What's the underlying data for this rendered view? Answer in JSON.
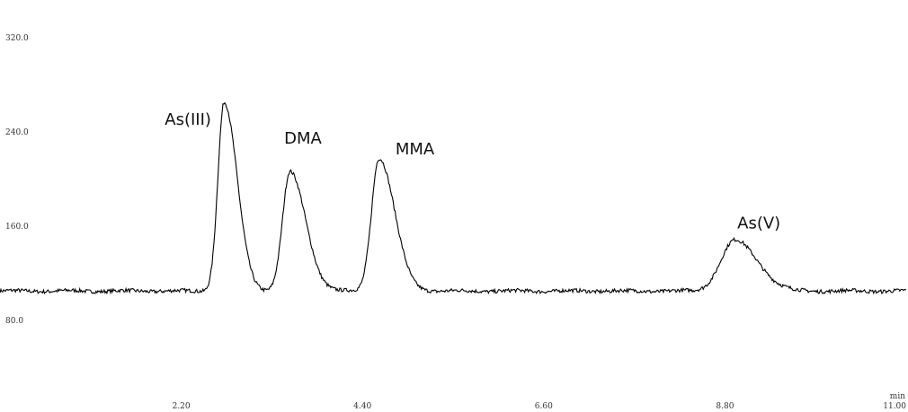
{
  "chart_data": {
    "type": "line",
    "title": "",
    "xlabel": "",
    "ylabel": "",
    "x_unit": "min",
    "xlim": [
      0.0,
      11.0
    ],
    "ylim": [
      50.0,
      330.0
    ],
    "xticks": [
      {
        "value": 2.2,
        "label": "2.20"
      },
      {
        "value": 4.4,
        "label": "4.40"
      },
      {
        "value": 6.6,
        "label": "6.60"
      },
      {
        "value": 8.8,
        "label": "8.80"
      },
      {
        "value": 11.0,
        "label": "11.00"
      }
    ],
    "yticks": [
      {
        "value": 80,
        "label": "80.0"
      },
      {
        "value": 160,
        "label": "160.0"
      },
      {
        "value": 240,
        "label": "240.0"
      },
      {
        "value": 320,
        "label": "320.0"
      }
    ],
    "grid": false,
    "color": "#000000",
    "baseline": 105,
    "peaks": [
      {
        "label": "As(III)",
        "retention_time": 2.72,
        "height": 265,
        "label_x": 2.0,
        "label_y": 246
      },
      {
        "label": "DMA",
        "retention_time": 3.52,
        "height": 206,
        "label_x": 3.45,
        "label_y": 230
      },
      {
        "label": "MMA",
        "retention_time": 4.6,
        "height": 218,
        "label_x": 4.8,
        "label_y": 221
      },
      {
        "label": "As(V)",
        "retention_time": 8.92,
        "height": 148,
        "label_x": 8.95,
        "label_y": 158
      }
    ]
  }
}
